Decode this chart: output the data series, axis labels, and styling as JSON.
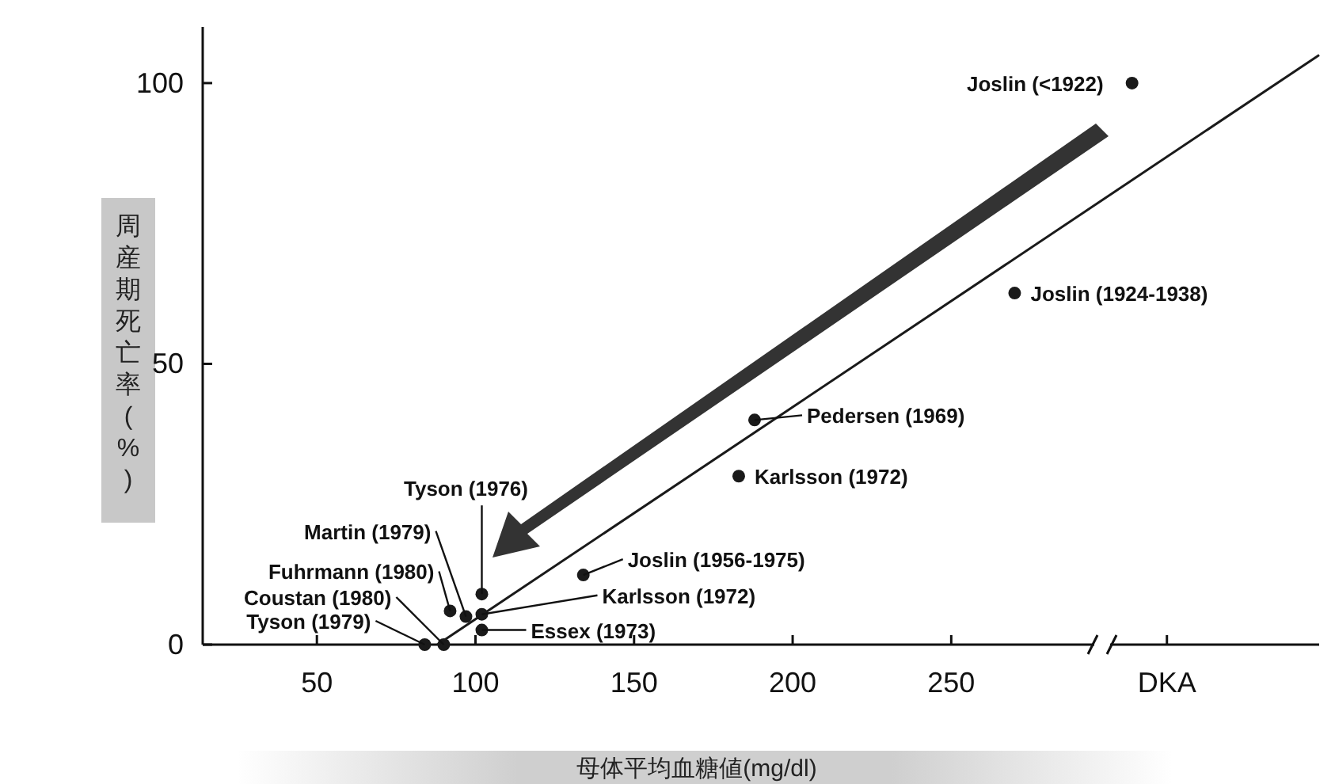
{
  "chart_data": {
    "type": "scatter",
    "xlabel": "母体平均血糖値(mg/dl)",
    "ylabel": "周産期死亡率(%)",
    "xlim": [
      14,
      366
    ],
    "ylim": [
      0,
      110
    ],
    "xticks": [
      50,
      100,
      150,
      200,
      250,
      {
        "value": 318,
        "label": "DKA"
      }
    ],
    "yticks": [
      0,
      50,
      100
    ],
    "series": [
      {
        "color": "#1a1a1a",
        "marker": "circle",
        "x": [
          307,
          270,
          188,
          183,
          134,
          102,
          102,
          102,
          97,
          92,
          90,
          84
        ],
        "values": [
          100,
          62.6,
          40,
          30,
          12.4,
          9,
          5.4,
          2.6,
          5,
          6,
          0,
          0
        ]
      },
      {
        "type": "line",
        "color": "#1a1a1a",
        "x": [
          88,
          366
        ],
        "values": [
          0,
          105
        ]
      }
    ],
    "annotations": [
      {
        "text": "Joslin (<1922)",
        "x": 307,
        "y": 100
      },
      {
        "text": "Joslin (1924-1938)",
        "x": 270,
        "y": 62.6
      },
      {
        "text": "Pedersen (1969)",
        "x": 188,
        "y": 40
      },
      {
        "text": "Karlsson (1972)",
        "x": 183,
        "y": 30
      },
      {
        "text": "Joslin (1956-1975)",
        "x": 134,
        "y": 12.4
      },
      {
        "text": "Tyson (1976)",
        "x": 102,
        "y": 9
      },
      {
        "text": "Karlsson (1972)",
        "x": 102,
        "y": 5.4
      },
      {
        "text": "Essex (1973)",
        "x": 102,
        "y": 2.6
      },
      {
        "text": "Martin (1979)",
        "x": 97,
        "y": 5
      },
      {
        "text": "Fuhrmann (1980)",
        "x": 92,
        "y": 6
      },
      {
        "text": "Coustan (1980)",
        "x": 90,
        "y": 0
      },
      {
        "text": "Tyson (1979)",
        "x": 84,
        "y": 0
      }
    ],
    "grid": false,
    "line_style": "solid"
  }
}
